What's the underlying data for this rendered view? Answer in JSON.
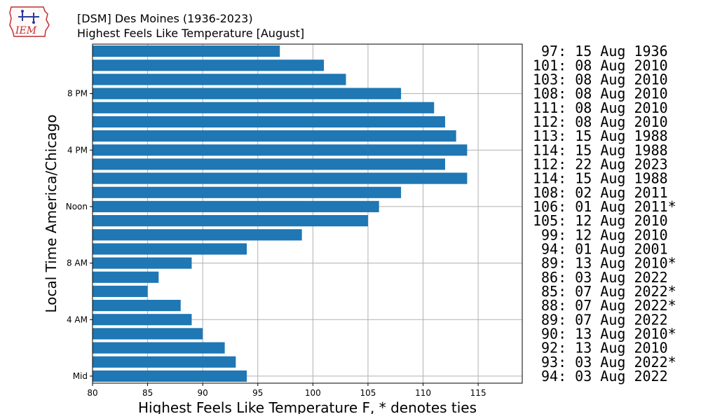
{
  "header": {
    "logo_text": "IEM",
    "title_line1": "[DSM] Des Moines (1936-2023)",
    "title_line2": "Highest Feels Like Temperature [August]"
  },
  "chart_data": {
    "type": "bar",
    "orientation": "horizontal",
    "title": "[DSM] Des Moines (1936-2023)",
    "subtitle": "Highest Feels Like Temperature [August]",
    "xlabel": "Highest Feels Like Temperature F, * denotes ties",
    "ylabel": "Local Time America/Chicago",
    "xlim": [
      80,
      119
    ],
    "xticks": [
      80,
      85,
      90,
      95,
      100,
      105,
      110,
      115
    ],
    "hours": [
      0,
      1,
      2,
      3,
      4,
      5,
      6,
      7,
      8,
      9,
      10,
      11,
      12,
      13,
      14,
      15,
      16,
      17,
      18,
      19,
      20,
      21,
      22,
      23
    ],
    "yticks": [
      {
        "hour": 0,
        "label": "Mid"
      },
      {
        "hour": 4,
        "label": "4 AM"
      },
      {
        "hour": 8,
        "label": "8 AM"
      },
      {
        "hour": 12,
        "label": "Noon"
      },
      {
        "hour": 16,
        "label": "4 PM"
      },
      {
        "hour": 20,
        "label": "8 PM"
      }
    ],
    "values": [
      94,
      93,
      92,
      90,
      89,
      88,
      85,
      86,
      89,
      94,
      99,
      105,
      106,
      108,
      114,
      112,
      114,
      113,
      112,
      111,
      108,
      103,
      101,
      97
    ],
    "annotations": [
      "94: 03 Aug 2022",
      "93: 03 Aug 2022*",
      "92: 13 Aug 2010",
      "90: 13 Aug 2010*",
      "89: 07 Aug 2022",
      "88: 07 Aug 2022*",
      "85: 07 Aug 2022*",
      "86: 03 Aug 2022",
      "89: 13 Aug 2010*",
      "94: 01 Aug 2001",
      "99: 12 Aug 2010",
      "105: 12 Aug 2010",
      "106: 01 Aug 2011*",
      "108: 02 Aug 2011",
      "114: 15 Aug 1988",
      "112: 22 Aug 2023",
      "114: 15 Aug 1988",
      "113: 15 Aug 1988",
      "112: 08 Aug 2010",
      "111: 08 Aug 2010",
      "108: 08 Aug 2010",
      "103: 08 Aug 2010",
      "101: 08 Aug 2010",
      "97: 15 Aug 1936"
    ],
    "bar_color": "#1f77b4",
    "grid": true
  }
}
